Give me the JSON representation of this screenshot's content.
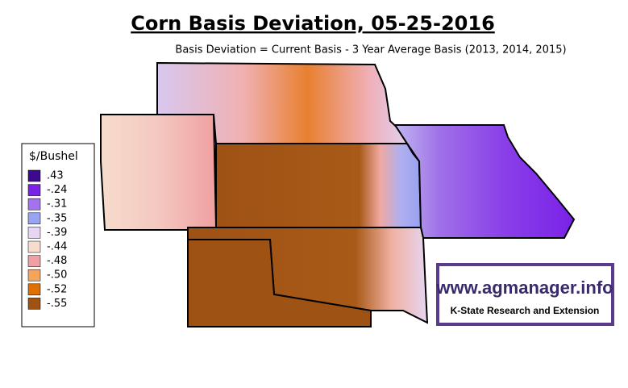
{
  "title": "Corn Basis Deviation, 05-25-2016",
  "subtitle": "Basis Deviation = Current Basis - 3 Year Average Basis (2013, 2014, 2015)",
  "legend": {
    "title": "$/Bushel",
    "items": [
      {
        "label": ".43",
        "color": "#3c0a8c"
      },
      {
        "label": "-.24",
        "color": "#7a22e8"
      },
      {
        "label": "-.31",
        "color": "#a472ec"
      },
      {
        "label": "-.35",
        "color": "#98a4f2"
      },
      {
        "label": "-.39",
        "color": "#e6d6f2"
      },
      {
        "label": "-.44",
        "color": "#f6dccc"
      },
      {
        "label": "-.48",
        "color": "#f0a0a4"
      },
      {
        "label": "-.50",
        "color": "#f4a45c"
      },
      {
        "label": "-.52",
        "color": "#de7004"
      },
      {
        "label": "-.55",
        "color": "#9e5214"
      }
    ]
  },
  "logo": {
    "url": "www.agmanager.info",
    "org": "K-State Research and Extension"
  }
}
